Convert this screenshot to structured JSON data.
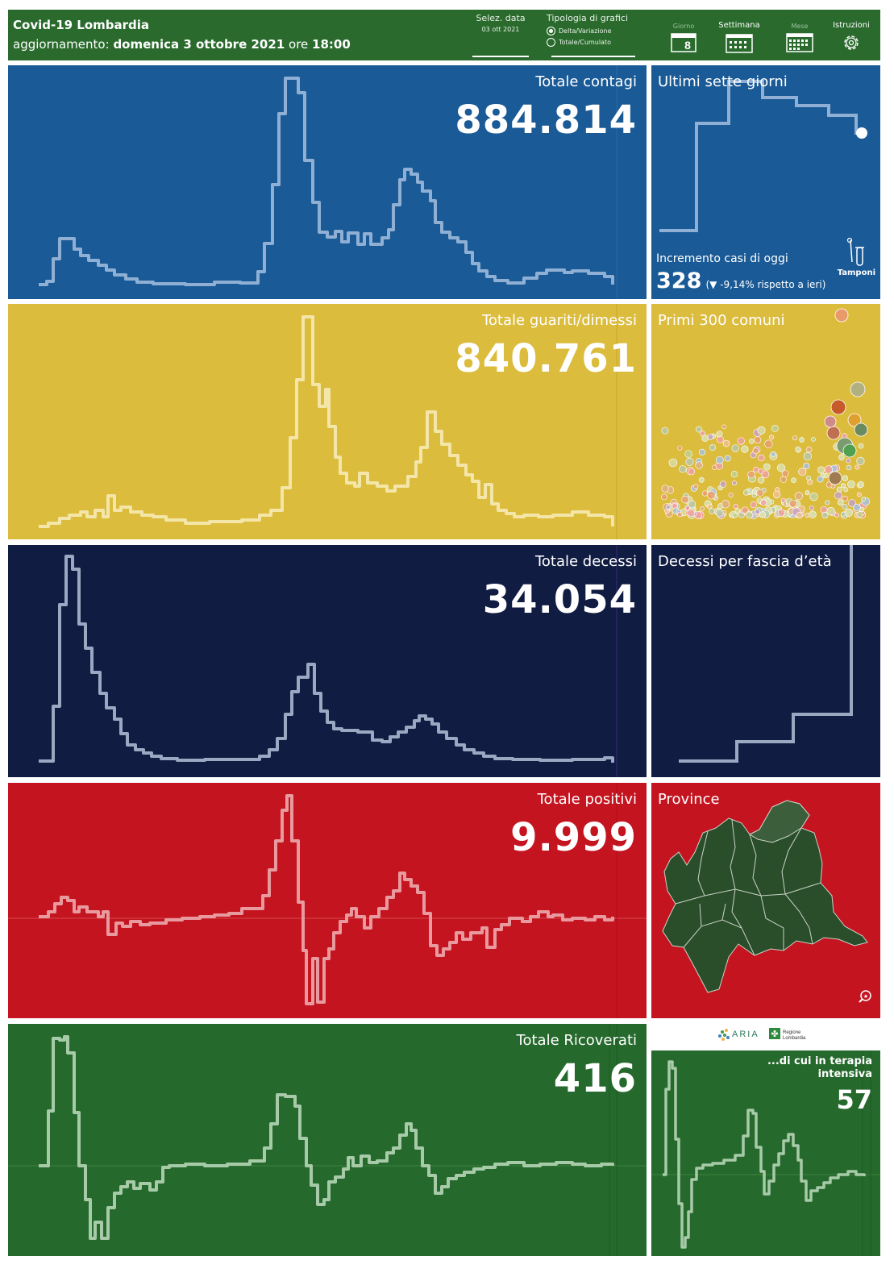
{
  "header": {
    "title": "Covid-19 Lombardia",
    "update_prefix": "aggiornamento:",
    "update_date": "domenica 3 ottobre 2021",
    "update_ore": "ore",
    "update_time": "18:00",
    "date_label": "Selez. data",
    "date_value": "03 ott 2021",
    "chart_type_label": "Tipologia di grafici",
    "option_delta": "Delta/Variazione",
    "option_cumulative": "Totale/Cumulato",
    "nav_day": "Giorno",
    "nav_day_number": "8",
    "nav_week": "Settimana",
    "nav_month": "Mese",
    "nav_instructions": "Istruzioni"
  },
  "colors": {
    "header": "#2a6b2d",
    "contagi": "#1a5a96",
    "guariti": "#dcbc3d",
    "decessi": "#101c42",
    "positivi": "#c41420",
    "ricoverati": "#26692c"
  },
  "panels": {
    "contagi": {
      "title": "Totale contagi",
      "value": "884.814"
    },
    "guariti": {
      "title": "Totale guariti/dimessi",
      "value": "840.761"
    },
    "decessi": {
      "title": "Totale decessi",
      "value": "34.054"
    },
    "positivi": {
      "title": "Totale positivi",
      "value": "9.999"
    },
    "ricoverati": {
      "title": "Totale Ricoverati",
      "value": "416"
    }
  },
  "side": {
    "week": {
      "title": "Ultimi sette giorni",
      "increment_label": "Incremento casi di oggi",
      "increment_value": "328",
      "increment_note": "(▼ -9,14% rispetto a  ieri)",
      "tamponi": "Tamponi"
    },
    "comuni": {
      "title": "Primi 300 comuni"
    },
    "eta": {
      "title": "Decessi per fascia d’età"
    },
    "province": {
      "title": "Province"
    },
    "logos": {
      "aria": "ARIA",
      "regione": "Regione Lombardia"
    },
    "terapia": {
      "title": "...di cui in terapia intensiva",
      "value": "57"
    }
  },
  "icons": {
    "calendar": "calendar-icon",
    "settings": "gear-icon",
    "test_tube": "test-tube-icon",
    "zoom": "zoom-icon"
  }
}
